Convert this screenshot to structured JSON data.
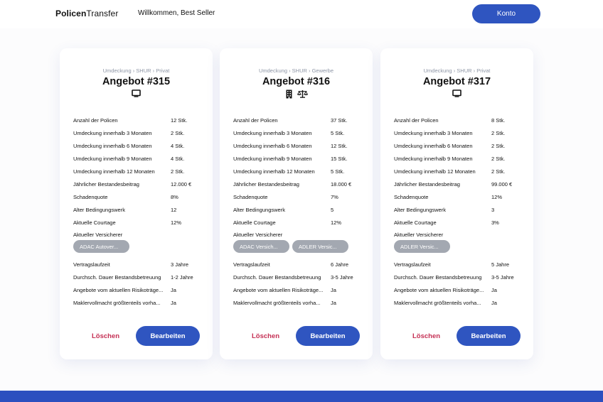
{
  "header": {
    "logo_bold": "Policen",
    "logo_regular": "Transfer",
    "welcome": "Willkommen,  Best Seller",
    "account_button": "Konto"
  },
  "colors": {
    "primary": "#2f55c0",
    "danger": "#c53054",
    "chip": "#a3a8b1",
    "footer": "#2c4fbf"
  },
  "cards": [
    {
      "breadcrumb": "Umdeckung › SHUR › Privat",
      "title": "Angebot #315",
      "icons": [
        "monitor-icon"
      ],
      "rows_top": [
        {
          "label": "Anzahl der Policen",
          "value": "12 Stk."
        },
        {
          "label": "Umdeckung innerhalb 3 Monaten",
          "value": "2 Stk."
        },
        {
          "label": "Umdeckung innerhalb 6 Monaten",
          "value": "4 Stk."
        },
        {
          "label": "Umdeckung innerhalb 9 Monaten",
          "value": "4 Stk."
        },
        {
          "label": "Umdeckung innerhalb 12 Monaten",
          "value": "2 Stk."
        },
        {
          "label": "Jährlicher Bestandesbeitrag",
          "value": "12.000 €"
        },
        {
          "label": "Schadenquote",
          "value": "8%"
        },
        {
          "label": "Alter Bedingungswerk",
          "value": "12"
        },
        {
          "label": "Aktuelle Courtage",
          "value": "12%"
        }
      ],
      "versicherer_label": "Aktueller Versicherer",
      "chips": [
        "ADAC Autover..."
      ],
      "rows_bottom": [
        {
          "label": "Vertragslaufzeit",
          "value": "3 Jahre"
        },
        {
          "label": "Durchsch. Dauer Bestandsbetreuung",
          "value": "1-2 Jahre"
        },
        {
          "label": "Angebote vom aktuellen Risikoträge...",
          "value": "Ja"
        },
        {
          "label": "Maklervollmacht größtenteils vorha...",
          "value": "Ja"
        }
      ],
      "delete_label": "Löschen",
      "edit_label": "Bearbeiten"
    },
    {
      "breadcrumb": "Umdeckung › SHUR › Gewerbe",
      "title": "Angebot #316",
      "icons": [
        "building-icon",
        "scale-icon"
      ],
      "rows_top": [
        {
          "label": "Anzahl der Policen",
          "value": "37 Stk."
        },
        {
          "label": "Umdeckung innerhalb 3 Monaten",
          "value": "5 Stk."
        },
        {
          "label": "Umdeckung innerhalb 6 Monaten",
          "value": "12 Stk."
        },
        {
          "label": "Umdeckung innerhalb 9 Monaten",
          "value": "15 Stk."
        },
        {
          "label": "Umdeckung innerhalb 12 Monaten",
          "value": "5 Stk."
        },
        {
          "label": "Jährlicher Bestandesbeitrag",
          "value": "18.000 €"
        },
        {
          "label": "Schadenquote",
          "value": "7%"
        },
        {
          "label": "Alter Bedingungswerk",
          "value": "5"
        },
        {
          "label": "Aktuelle Courtage",
          "value": "12%"
        }
      ],
      "versicherer_label": "Aktueller Versicherer",
      "chips": [
        "ADAC Versich...",
        "ADLER Versic..."
      ],
      "rows_bottom": [
        {
          "label": "Vertragslaufzeit",
          "value": "6 Jahre"
        },
        {
          "label": "Durchsch. Dauer Bestandsbetreuung",
          "value": "3-5 Jahre"
        },
        {
          "label": "Angebote vom aktuellen Risikoträge...",
          "value": "Ja"
        },
        {
          "label": "Maklervollmacht größtenteils vorha...",
          "value": "Ja"
        }
      ],
      "delete_label": "Löschen",
      "edit_label": "Bearbeiten"
    },
    {
      "breadcrumb": "Umdeckung › SHUR › Privat",
      "title": "Angebot #317",
      "icons": [
        "monitor-icon"
      ],
      "rows_top": [
        {
          "label": "Anzahl der Policen",
          "value": "8 Stk."
        },
        {
          "label": "Umdeckung innerhalb 3 Monaten",
          "value": "2 Stk."
        },
        {
          "label": "Umdeckung innerhalb 6 Monaten",
          "value": "2 Stk."
        },
        {
          "label": "Umdeckung innerhalb 9 Monaten",
          "value": "2 Stk."
        },
        {
          "label": "Umdeckung innerhalb 12 Monaten",
          "value": "2 Stk."
        },
        {
          "label": "Jährlicher Bestandesbeitrag",
          "value": "99.000 €"
        },
        {
          "label": "Schadenquote",
          "value": "12%"
        },
        {
          "label": "Alter Bedingungswerk",
          "value": "3"
        },
        {
          "label": "Aktuelle Courtage",
          "value": "3%"
        }
      ],
      "versicherer_label": "Aktueller Versicherer",
      "chips": [
        "ADLER Versic..."
      ],
      "rows_bottom": [
        {
          "label": "Vertragslaufzeit",
          "value": "5 Jahre"
        },
        {
          "label": "Durchsch. Dauer Bestandsbetreuung",
          "value": "3-5 Jahre"
        },
        {
          "label": "Angebote vom aktuellen Risikoträge...",
          "value": "Ja"
        },
        {
          "label": "Maklervollmacht größtenteils vorha...",
          "value": "Ja"
        }
      ],
      "delete_label": "Löschen",
      "edit_label": "Bearbeiten"
    }
  ]
}
